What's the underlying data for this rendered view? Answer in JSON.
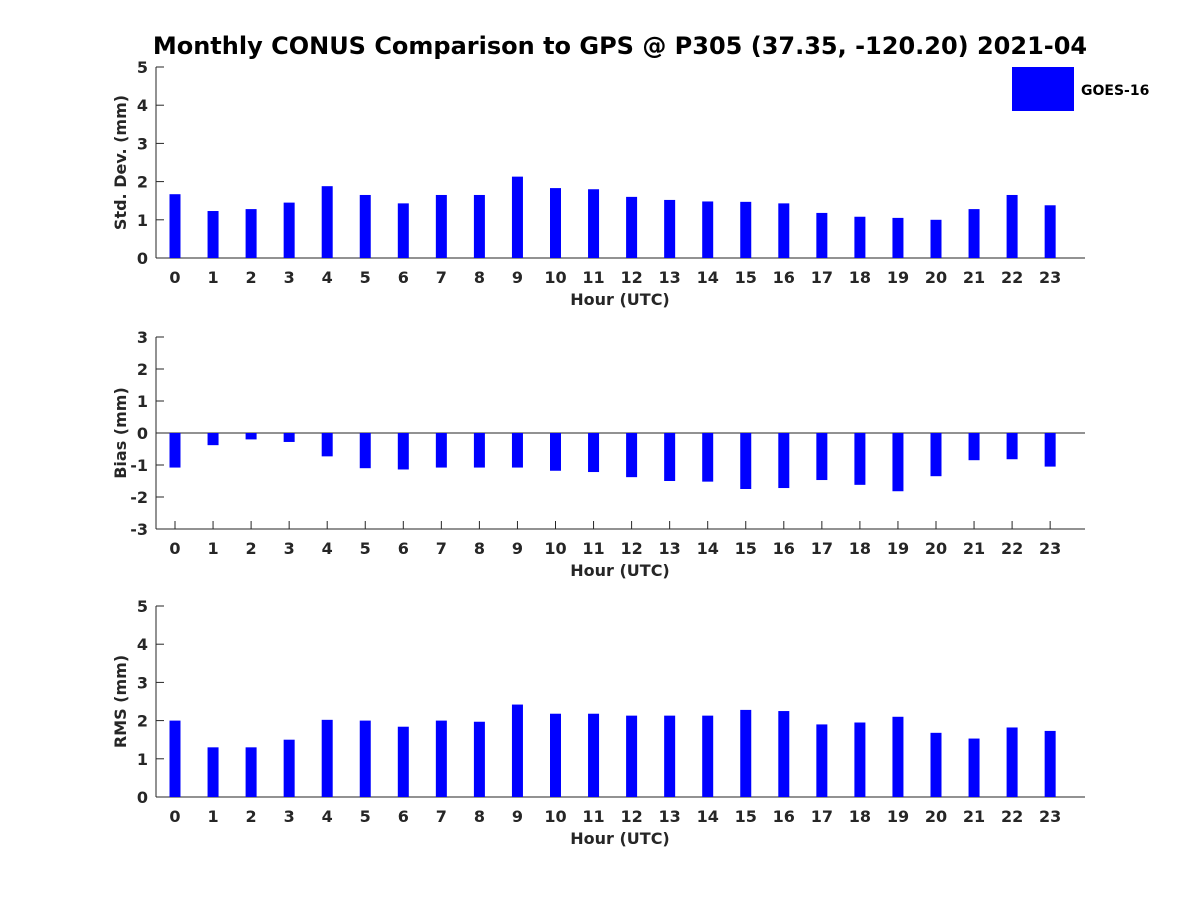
{
  "title": "Monthly CONUS Comparison to GPS @ P305 (37.35, -120.20) 2021-04",
  "legend": {
    "label": "GOES-16",
    "color": "#0000ff"
  },
  "chart_data": [
    {
      "type": "bar",
      "series_name": "GOES-16",
      "color": "#0000ff",
      "xlabel": "Hour (UTC)",
      "ylabel": "Std. Dev. (mm)",
      "ylim": [
        0,
        5
      ],
      "yticks": [
        0,
        1,
        2,
        3,
        4,
        5
      ],
      "categories": [
        "0",
        "1",
        "2",
        "3",
        "4",
        "5",
        "6",
        "7",
        "8",
        "9",
        "10",
        "11",
        "12",
        "13",
        "14",
        "15",
        "16",
        "17",
        "18",
        "19",
        "20",
        "21",
        "22",
        "23"
      ],
      "values": [
        1.67,
        1.23,
        1.28,
        1.45,
        1.88,
        1.65,
        1.43,
        1.65,
        1.65,
        2.13,
        1.83,
        1.8,
        1.6,
        1.52,
        1.48,
        1.47,
        1.43,
        1.18,
        1.08,
        1.05,
        1.0,
        1.28,
        1.65,
        1.38
      ]
    },
    {
      "type": "bar",
      "series_name": "GOES-16",
      "color": "#0000ff",
      "xlabel": "Hour (UTC)",
      "ylabel": "Bias (mm)",
      "ylim": [
        -3,
        3
      ],
      "yticks": [
        -3,
        -2,
        -1,
        0,
        1,
        2,
        3
      ],
      "categories": [
        "0",
        "1",
        "2",
        "3",
        "4",
        "5",
        "6",
        "7",
        "8",
        "9",
        "10",
        "11",
        "12",
        "13",
        "14",
        "15",
        "16",
        "17",
        "18",
        "19",
        "20",
        "21",
        "22",
        "23"
      ],
      "values": [
        -1.08,
        -0.38,
        -0.2,
        -0.28,
        -0.73,
        -1.1,
        -1.14,
        -1.08,
        -1.08,
        -1.08,
        -1.18,
        -1.22,
        -1.38,
        -1.5,
        -1.52,
        -1.75,
        -1.72,
        -1.47,
        -1.62,
        -1.82,
        -1.35,
        -0.85,
        -0.82,
        -1.05
      ]
    },
    {
      "type": "bar",
      "series_name": "GOES-16",
      "color": "#0000ff",
      "xlabel": "Hour (UTC)",
      "ylabel": "RMS (mm)",
      "ylim": [
        0,
        5
      ],
      "yticks": [
        0,
        1,
        2,
        3,
        4,
        5
      ],
      "categories": [
        "0",
        "1",
        "2",
        "3",
        "4",
        "5",
        "6",
        "7",
        "8",
        "9",
        "10",
        "11",
        "12",
        "13",
        "14",
        "15",
        "16",
        "17",
        "18",
        "19",
        "20",
        "21",
        "22",
        "23"
      ],
      "values": [
        2.0,
        1.3,
        1.3,
        1.5,
        2.02,
        2.0,
        1.84,
        2.0,
        1.97,
        2.42,
        2.18,
        2.18,
        2.13,
        2.13,
        2.13,
        2.28,
        2.25,
        1.9,
        1.95,
        2.1,
        1.68,
        1.53,
        1.82,
        1.73
      ]
    }
  ]
}
